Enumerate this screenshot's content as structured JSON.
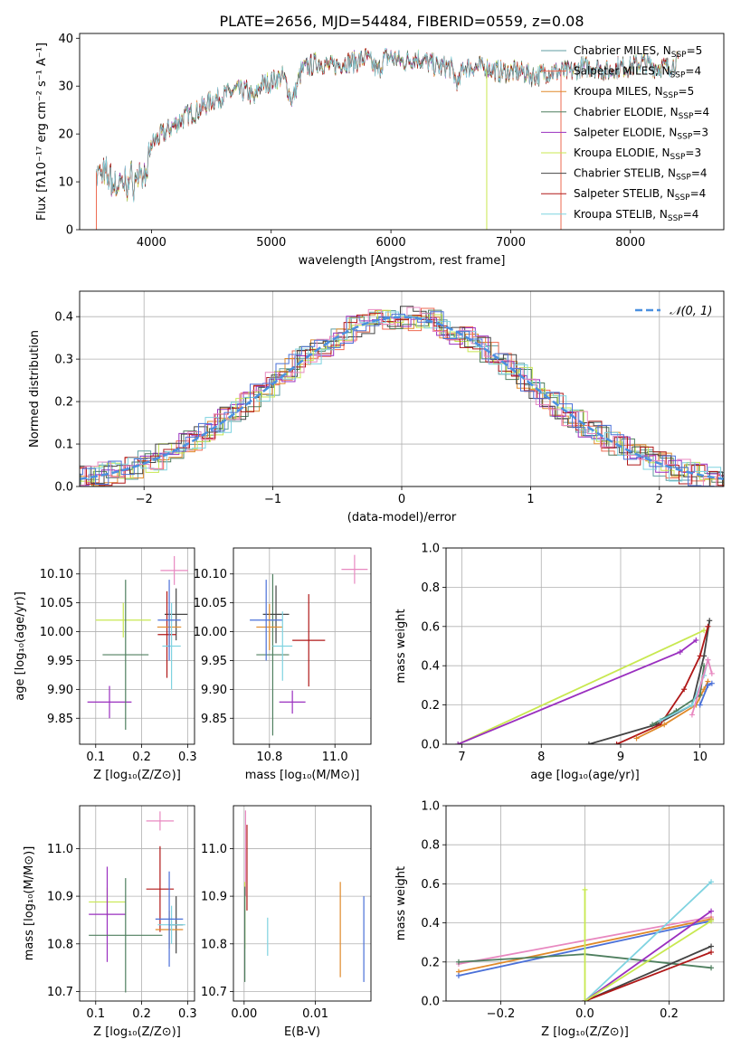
{
  "figure": {
    "title": "PLATE=2656, MJD=54484, FIBERID=0559, z=0.08"
  },
  "colors": {
    "chab_miles": "#5f9ea0",
    "salp_miles": "#ee6a50",
    "krou_miles": "#e08a2a",
    "chab_elodie": "#4f7f5f",
    "salp_elodie": "#9a2fbf",
    "krou_elodie": "#c8e850",
    "chab_stelib": "#444444",
    "salp_stelib": "#b01818",
    "krou_stelib": "#7fd3e0",
    "pink": "#e888c0",
    "blue": "#4a70d8",
    "green2": "#5a9a6a",
    "gauss": "#4a90e0"
  },
  "chart_data": [
    {
      "id": "spectrum",
      "type": "line",
      "xlabel": "wavelength [Angstrom, rest frame]",
      "ylabel": "Flux [fλ10⁻¹⁷ erg cm⁻² s⁻¹ A⁻¹]",
      "xlim": [
        3400,
        8780
      ],
      "ylim": [
        0,
        41
      ],
      "xticks": [
        4000,
        5000,
        6000,
        7000,
        8000
      ],
      "yticks": [
        0,
        10,
        20,
        30,
        40
      ],
      "spectrum_x": [
        3540,
        3650,
        3700,
        3800,
        3900,
        3970,
        4000,
        4100,
        4200,
        4300,
        4400,
        4500,
        4600,
        4700,
        4800,
        4860,
        4900,
        5000,
        5100,
        5175,
        5250,
        5300,
        5400,
        5500,
        5600,
        5700,
        5800,
        5890,
        5950,
        6000,
        6100,
        6200,
        6300,
        6400,
        6500,
        6563,
        6600,
        6700,
        6800,
        6900,
        7000,
        7100,
        7200,
        7300,
        7400,
        7500,
        7600,
        7700,
        7800,
        7900,
        8000,
        8100,
        8200,
        8300,
        8400
      ],
      "spectrum_y": [
        12,
        11,
        9,
        10,
        11,
        12,
        18,
        20,
        22,
        24,
        25,
        27,
        28,
        29,
        29,
        27,
        30,
        31,
        32,
        27,
        33,
        34,
        35,
        34,
        35,
        35,
        36,
        33,
        36,
        36,
        35,
        36,
        35,
        34,
        34,
        30,
        34,
        34,
        34,
        33,
        33,
        33,
        32,
        33,
        33,
        33,
        34,
        34,
        33,
        34,
        34,
        35,
        34,
        34,
        35
      ],
      "legend": [
        {
          "label": "Chabrier MILES, N",
          "sub": "SSP",
          "n": "=5",
          "color": "chab_miles"
        },
        {
          "label": "Salpeter MILES, N",
          "sub": "SSP",
          "n": "=4",
          "color": "salp_miles"
        },
        {
          "label": "Kroupa MILES, N",
          "sub": "SSP",
          "n": "=5",
          "color": "krou_miles"
        },
        {
          "label": "Chabrier ELODIE, N",
          "sub": "SSP",
          "n": "=4",
          "color": "chab_elodie"
        },
        {
          "label": "Salpeter ELODIE, N",
          "sub": "SSP",
          "n": "=3",
          "color": "salp_elodie"
        },
        {
          "label": "Kroupa ELODIE, N",
          "sub": "SSP",
          "n": "=3",
          "color": "krou_elodie"
        },
        {
          "label": "Chabrier STELIB, N",
          "sub": "SSP",
          "n": "=4",
          "color": "chab_stelib"
        },
        {
          "label": "Salpeter STELIB, N",
          "sub": "SSP",
          "n": "=4",
          "color": "salp_stelib"
        },
        {
          "label": "Kroupa STELIB, N",
          "sub": "SSP",
          "n": "=4",
          "color": "krou_stelib"
        }
      ],
      "legend_position": "top-right"
    },
    {
      "id": "residuals",
      "type": "step-histogram",
      "xlabel": "(data-model)/error",
      "ylabel": "Normed distribution",
      "xlim": [
        -2.5,
        2.5
      ],
      "ylim": [
        0,
        0.46
      ],
      "xticks": [
        -2,
        -1,
        0,
        1,
        2
      ],
      "yticks": [
        0.0,
        0.1,
        0.2,
        0.3,
        0.4
      ],
      "xtick_labels": [
        "−2",
        "−1",
        "0",
        "1",
        "2"
      ],
      "grid": true,
      "legend": [
        {
          "label": "𝒩(0, 1)",
          "color": "gauss"
        }
      ],
      "legend_position": "top-right"
    },
    {
      "id": "age_vs_Z",
      "type": "errorbar",
      "xlabel": "Z [log₁₀(Z/Z⊙)]",
      "ylabel": "age  [log₁₀(age/yr)]",
      "xlim": [
        0.065,
        0.315
      ],
      "ylim": [
        9.805,
        10.145
      ],
      "xticks": [
        0.1,
        0.2,
        0.3
      ],
      "yticks": [
        9.85,
        9.9,
        9.95,
        10.0,
        10.05,
        10.1
      ],
      "points": [
        {
          "x": 0.271,
          "y": 10.106,
          "xe": 0.03,
          "ye": 0.025,
          "c": "pink"
        },
        {
          "x": 0.16,
          "y": 10.02,
          "xe": 0.06,
          "ye": 0.03,
          "c": "krou_elodie"
        },
        {
          "x": 0.13,
          "y": 9.878,
          "xe": 0.048,
          "ye": 0.028,
          "c": "salp_elodie"
        },
        {
          "x": 0.165,
          "y": 9.96,
          "xe": 0.05,
          "ye": 0.13,
          "c": "chab_elodie"
        },
        {
          "x": 0.275,
          "y": 10.03,
          "xe": 0.025,
          "ye": 0.045,
          "c": "chab_stelib"
        },
        {
          "x": 0.255,
          "y": 9.995,
          "xe": 0.02,
          "ye": 0.075,
          "c": "salp_stelib"
        },
        {
          "x": 0.26,
          "y": 10.008,
          "xe": 0.026,
          "ye": 0.03,
          "c": "krou_miles"
        },
        {
          "x": 0.265,
          "y": 9.975,
          "xe": 0.02,
          "ye": 0.075,
          "c": "krou_stelib"
        },
        {
          "x": 0.26,
          "y": 10.02,
          "xe": 0.025,
          "ye": 0.07,
          "c": "blue"
        }
      ],
      "grid": true
    },
    {
      "id": "age_vs_mass",
      "type": "errorbar",
      "xlabel": "mass [log₁₀(M/M⊙)]",
      "ylabel": "",
      "xlim": [
        10.69,
        11.11
      ],
      "ylim": [
        9.805,
        10.145
      ],
      "xticks": [
        10.8,
        11.0
      ],
      "yticks": [
        9.85,
        9.9,
        9.95,
        10.0,
        10.05,
        10.1
      ],
      "points": [
        {
          "x": 11.06,
          "y": 10.108,
          "xe": 0.04,
          "ye": 0.025,
          "c": "pink"
        },
        {
          "x": 10.81,
          "y": 9.96,
          "xe": 0.05,
          "ye": 0.14,
          "c": "chab_elodie"
        },
        {
          "x": 10.87,
          "y": 9.878,
          "xe": 0.04,
          "ye": 0.02,
          "c": "salp_elodie"
        },
        {
          "x": 10.82,
          "y": 10.03,
          "xe": 0.04,
          "ye": 0.05,
          "c": "chab_stelib"
        },
        {
          "x": 10.92,
          "y": 9.985,
          "xe": 0.05,
          "ye": 0.08,
          "c": "salp_stelib"
        },
        {
          "x": 10.8,
          "y": 10.008,
          "xe": 0.04,
          "ye": 0.04,
          "c": "krou_miles"
        },
        {
          "x": 10.79,
          "y": 10.02,
          "xe": 0.05,
          "ye": 0.07,
          "c": "blue"
        },
        {
          "x": 10.84,
          "y": 9.975,
          "xe": 0.03,
          "ye": 0.06,
          "c": "krou_stelib"
        }
      ],
      "grid": true
    },
    {
      "id": "cum_weight_vs_age",
      "type": "line",
      "xlabel": "age  [log₁₀(age/yr)]",
      "ylabel": "mass weight",
      "xlim": [
        6.8,
        10.3
      ],
      "ylim": [
        0,
        1.0
      ],
      "xticks": [
        7,
        8,
        9,
        10
      ],
      "yticks": [
        0.0,
        0.2,
        0.4,
        0.6,
        0.8,
        1.0
      ],
      "series": [
        {
          "c": "krou_elodie",
          "x": [
            6.95,
            10.05
          ],
          "y": [
            0.0,
            0.58
          ]
        },
        {
          "c": "salp_elodie",
          "x": [
            6.95,
            9.75,
            9.95
          ],
          "y": [
            0.0,
            0.47,
            0.53
          ]
        },
        {
          "c": "chab_stelib",
          "x": [
            8.6,
            9.45,
            9.9,
            10.05,
            10.12
          ],
          "y": [
            0.0,
            0.1,
            0.2,
            0.45,
            0.63
          ]
        },
        {
          "c": "salp_stelib",
          "x": [
            8.95,
            9.5,
            9.8,
            10.0,
            10.1
          ],
          "y": [
            0.0,
            0.1,
            0.28,
            0.45,
            0.6
          ]
        },
        {
          "c": "krou_miles",
          "x": [
            9.2,
            9.55,
            9.95,
            10.05,
            10.1
          ],
          "y": [
            0.03,
            0.1,
            0.2,
            0.28,
            0.32
          ]
        },
        {
          "c": "chab_elodie",
          "x": [
            9.4,
            9.7,
            10.0,
            10.05
          ],
          "y": [
            0.1,
            0.17,
            0.25,
            0.4
          ]
        },
        {
          "c": "krou_stelib",
          "x": [
            9.5,
            9.9,
            10.05,
            10.1
          ],
          "y": [
            0.12,
            0.2,
            0.35,
            0.43
          ]
        },
        {
          "c": "pink",
          "x": [
            9.9,
            10.1,
            10.15
          ],
          "y": [
            0.15,
            0.43,
            0.36
          ]
        },
        {
          "c": "blue",
          "x": [
            10.0,
            10.1,
            10.15
          ],
          "y": [
            0.2,
            0.3,
            0.31
          ]
        }
      ],
      "grid": true
    },
    {
      "id": "mass_vs_Z",
      "type": "errorbar",
      "xlabel": "Z [log₁₀(Z/Z⊙)]",
      "ylabel": "mass [log₁₀(M/M⊙)]",
      "xlim": [
        0.065,
        0.315
      ],
      "ylim": [
        10.68,
        11.09
      ],
      "xticks": [
        0.1,
        0.2,
        0.3
      ],
      "yticks": [
        10.7,
        10.8,
        10.9,
        11.0
      ],
      "points": [
        {
          "x": 0.24,
          "y": 11.058,
          "xe": 0.03,
          "ye": 0.02,
          "c": "pink"
        },
        {
          "x": 0.125,
          "y": 10.888,
          "xe": 0.04,
          "ye": 0.03,
          "c": "krou_elodie"
        },
        {
          "x": 0.125,
          "y": 10.862,
          "xe": 0.04,
          "ye": 0.1,
          "c": "salp_elodie"
        },
        {
          "x": 0.165,
          "y": 10.818,
          "xe": 0.08,
          "ye": 0.12,
          "c": "chab_elodie"
        },
        {
          "x": 0.275,
          "y": 10.84,
          "xe": 0.015,
          "ye": 0.06,
          "c": "chab_stelib"
        },
        {
          "x": 0.24,
          "y": 10.915,
          "xe": 0.03,
          "ye": 0.09,
          "c": "salp_stelib"
        },
        {
          "x": 0.26,
          "y": 10.83,
          "xe": 0.03,
          "ye": 0.04,
          "c": "krou_miles"
        },
        {
          "x": 0.265,
          "y": 10.84,
          "xe": 0.03,
          "ye": 0.04,
          "c": "krou_stelib"
        },
        {
          "x": 0.26,
          "y": 10.852,
          "xe": 0.03,
          "ye": 0.1,
          "c": "blue"
        }
      ],
      "grid": true
    },
    {
      "id": "mass_vs_EBV",
      "type": "errorbar",
      "xlabel": "E(B-V)",
      "ylabel": "",
      "xlim": [
        -0.0015,
        0.0178
      ],
      "ylim": [
        10.68,
        11.09
      ],
      "xticks": [
        0.0,
        0.01
      ],
      "yticks": [
        10.7,
        10.8,
        10.9,
        11.0
      ],
      "points": [
        {
          "x": 0.0002,
          "y": 10.99,
          "xe": 0.0,
          "ye": 0.09,
          "c": "pink"
        },
        {
          "x": 0.0004,
          "y": 10.96,
          "xe": 0.0,
          "ye": 0.09,
          "c": "salp_stelib"
        },
        {
          "x": 0.0001,
          "y": 10.86,
          "xe": 0.0,
          "ye": 0.07,
          "c": "krou_elodie"
        },
        {
          "x": 0.0001,
          "y": 10.82,
          "xe": 0.0,
          "ye": 0.1,
          "c": "chab_elodie"
        },
        {
          "x": 0.0033,
          "y": 10.815,
          "xe": 0.0,
          "ye": 0.04,
          "c": "krou_stelib"
        },
        {
          "x": 0.0135,
          "y": 10.83,
          "xe": 0.0,
          "ye": 0.1,
          "c": "krou_miles"
        },
        {
          "x": 0.0168,
          "y": 10.81,
          "xe": 0.0,
          "ye": 0.09,
          "c": "blue"
        }
      ],
      "grid": true
    },
    {
      "id": "cum_weight_vs_Z",
      "type": "line",
      "xlabel": "Z [log₁₀(Z/Z⊙)]",
      "ylabel": "mass weight",
      "xlim": [
        -0.33,
        0.33
      ],
      "ylim": [
        0,
        1.0
      ],
      "xticks": [
        -0.2,
        0.0,
        0.2
      ],
      "xtick_labels": [
        "−0.2",
        "0.0",
        "0.2"
      ],
      "yticks": [
        0.0,
        0.2,
        0.4,
        0.6,
        0.8,
        1.0
      ],
      "series": [
        {
          "c": "pink",
          "x": [
            -0.3,
            0.3
          ],
          "y": [
            0.19,
            0.43
          ]
        },
        {
          "c": "krou_miles",
          "x": [
            -0.3,
            0.3
          ],
          "y": [
            0.15,
            0.42
          ]
        },
        {
          "c": "blue",
          "x": [
            -0.3,
            0.3
          ],
          "y": [
            0.13,
            0.41
          ]
        },
        {
          "c": "chab_elodie",
          "x": [
            -0.3,
            0.0,
            0.3
          ],
          "y": [
            0.2,
            0.24,
            0.17
          ]
        },
        {
          "c": "krou_stelib",
          "x": [
            0.0,
            0.3
          ],
          "y": [
            0.0,
            0.61
          ]
        },
        {
          "c": "chab_stelib",
          "x": [
            0.0,
            0.3
          ],
          "y": [
            0.0,
            0.28
          ]
        },
        {
          "c": "salp_stelib",
          "x": [
            0.0,
            0.3
          ],
          "y": [
            0.0,
            0.25
          ]
        },
        {
          "c": "salp_elodie",
          "x": [
            0.0,
            0.3
          ],
          "y": [
            0.0,
            0.46
          ]
        },
        {
          "c": "krou_elodie",
          "x": [
            0.0,
            0.0,
            0.3
          ],
          "y": [
            0.57,
            0.0,
            0.41
          ]
        }
      ],
      "grid": true
    }
  ]
}
